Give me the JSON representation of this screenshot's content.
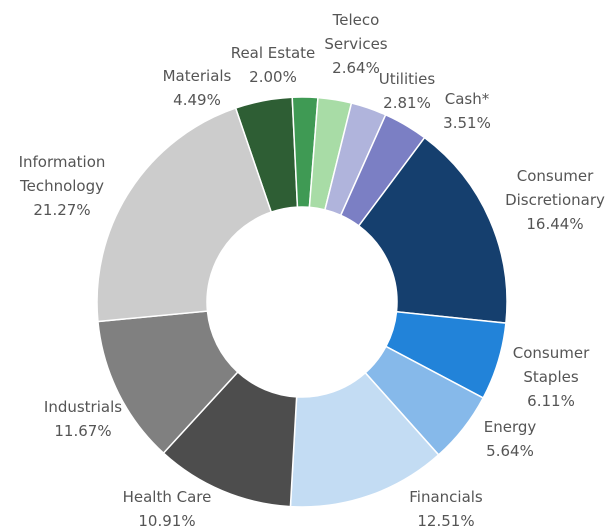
{
  "chart_data": {
    "type": "donut",
    "categories": [
      "Materials",
      "Real Estate",
      "Teleco Services",
      "Utilities",
      "Cash*",
      "Consumer Discretionary",
      "Consumer Staples",
      "Energy",
      "Financials",
      "Health Care",
      "Industrials",
      "Information Technology"
    ],
    "values": [
      4.49,
      2.0,
      2.64,
      2.81,
      3.51,
      16.44,
      6.11,
      5.64,
      12.51,
      10.91,
      11.67,
      21.27
    ],
    "value_labels": [
      "4.49%",
      "2.00%",
      "2.64%",
      "2.81%",
      "3.51%",
      "16.44%",
      "6.11%",
      "5.64%",
      "12.51%",
      "10.91%",
      "11.67%",
      "21.27%"
    ],
    "colors": [
      "#2e5e34",
      "#3f9a54",
      "#a8dca6",
      "#b0b4dc",
      "#7b7fc4",
      "#153f6e",
      "#2283d9",
      "#86b9ea",
      "#c3dcf3",
      "#4d4d4d",
      "#808080",
      "#cccccc"
    ]
  }
}
